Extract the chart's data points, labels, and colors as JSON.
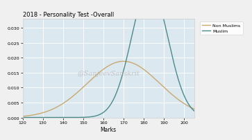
{
  "title": "2018 - Personality Test -Overall",
  "xlabel": "Marks",
  "ylabel": "",
  "xlim": [
    120,
    205
  ],
  "ylim": [
    0,
    0.033
  ],
  "yticks": [
    0.0,
    0.005,
    0.01,
    0.015,
    0.02,
    0.025,
    0.03
  ],
  "xticks": [
    120,
    130,
    140,
    150,
    160,
    170,
    180,
    190,
    200
  ],
  "non_muslim_color": "#c8a96e",
  "muslim_color": "#4a8a8a",
  "background_color": "#dce8f0",
  "outer_bg": "#f0f0f0",
  "watermark": "@SanjeevSanskrit",
  "legend_labels": [
    "Non Muslims",
    "Muslim"
  ],
  "non_muslim_mean": 170,
  "non_muslim_std": 18,
  "non_muslim_scale": 0.85,
  "muslim_mean": 183,
  "muslim_std": 9,
  "muslim_scale": 1.0
}
